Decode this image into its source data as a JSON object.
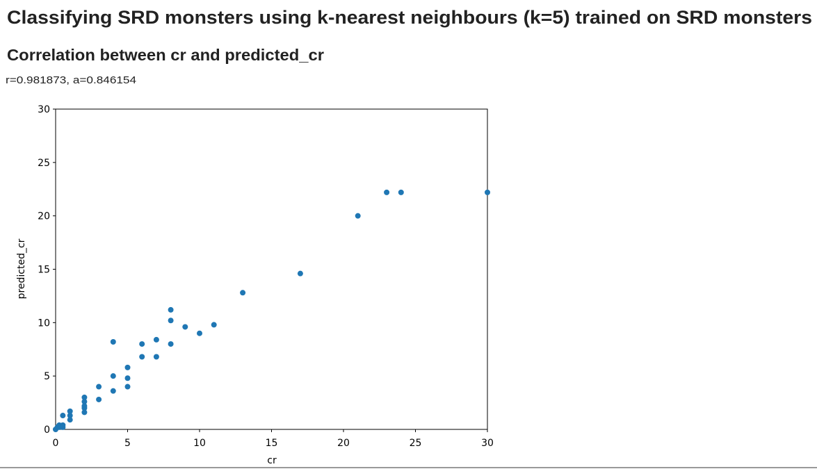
{
  "header": {
    "title": "Classifying SRD monsters using k-nearest neighbours (k=5) trained on SRD monsters",
    "subtitle": "Correlation between cr and predicted_cr",
    "stats": "r=0.981873, a=0.846154"
  },
  "chart_data": {
    "type": "scatter",
    "x_label": "cr",
    "y_label": "predicted_cr",
    "x": [
      0,
      0.125,
      0.25,
      0.25,
      0.5,
      0.5,
      0.5,
      1,
      1,
      1,
      2,
      2,
      2,
      2,
      2,
      3,
      3,
      4,
      4,
      4,
      5,
      5,
      5,
      6,
      6,
      7,
      7,
      8,
      8,
      8,
      9,
      10,
      11,
      13,
      17,
      21,
      23,
      24,
      30
    ],
    "values": [
      0,
      0.2,
      0.4,
      0.2,
      0.4,
      0.2,
      1.3,
      1.7,
      1.3,
      0.9,
      3.0,
      2.6,
      2.2,
      2.0,
      1.6,
      4.0,
      2.8,
      8.2,
      5.0,
      3.6,
      5.8,
      4.8,
      4.0,
      8.0,
      6.8,
      8.4,
      6.8,
      11.2,
      10.2,
      8.0,
      9.6,
      9.0,
      9.8,
      12.8,
      14.6,
      20.0,
      22.2,
      22.2,
      22.2
    ],
    "color": "#1f77b4",
    "xlim": [
      0,
      30
    ],
    "ylim": [
      0,
      30
    ],
    "xticks": [
      0,
      5,
      10,
      15,
      20,
      25,
      30
    ],
    "yticks": [
      0,
      5,
      10,
      15,
      20,
      25,
      30
    ]
  }
}
